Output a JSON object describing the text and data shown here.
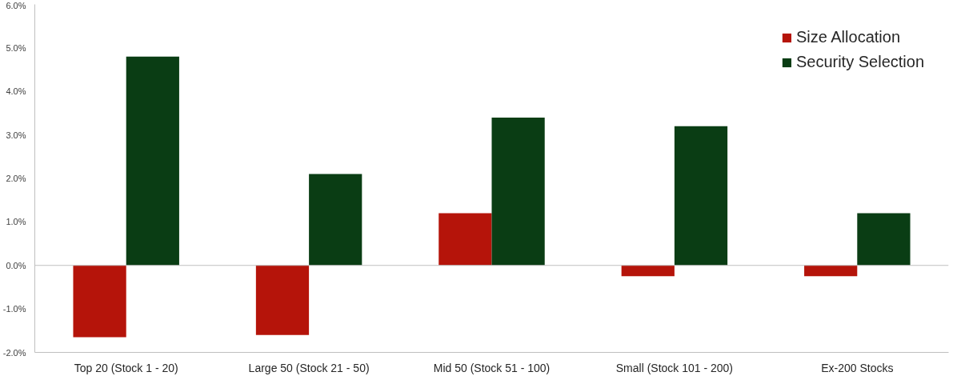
{
  "chart_data": {
    "type": "bar",
    "categories": [
      "Top 20 (Stock 1 - 20)",
      "Large 50 (Stock 21 - 50)",
      "Mid 50 (Stock 51 - 100)",
      "Small (Stock 101 - 200)",
      "Ex-200 Stocks"
    ],
    "series": [
      {
        "name": "Size Allocation",
        "color": "#b5140a",
        "values": [
          -1.65,
          -1.6,
          1.2,
          -0.25,
          -0.25
        ]
      },
      {
        "name": "Security Selection",
        "color": "#0a3d14",
        "values": [
          4.8,
          2.1,
          3.4,
          3.2,
          1.2
        ]
      }
    ],
    "ylim": [
      -2,
      6
    ],
    "yticks": [
      {
        "value": -2,
        "label": "-2.0%"
      },
      {
        "value": -1,
        "label": "-1.0%"
      },
      {
        "value": 0,
        "label": "0.0%"
      },
      {
        "value": 1,
        "label": "1.0%"
      },
      {
        "value": 2,
        "label": "2.0%"
      },
      {
        "value": 3,
        "label": "3.0%"
      },
      {
        "value": 4,
        "label": "4.0%"
      },
      {
        "value": 5,
        "label": "5.0%"
      },
      {
        "value": 6,
        "label": "6.0%"
      }
    ],
    "ref_lines": [
      {
        "axis": "y",
        "value": 0,
        "color": "#bfbfbf"
      }
    ],
    "grid": false,
    "legend": "top right"
  }
}
